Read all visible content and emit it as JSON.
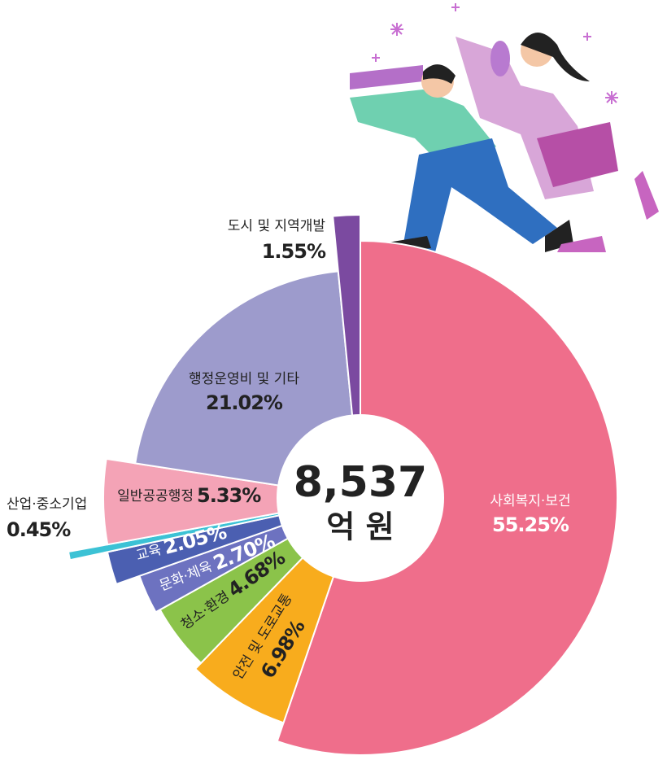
{
  "chart_data": {
    "type": "pie",
    "center_text": "8,537",
    "center_unit": "억 원",
    "categories": [
      "사회복지·보건",
      "안전 및 도로교통",
      "청소·환경",
      "문화·체육",
      "교육",
      "산업·중소기업",
      "일반공공행정",
      "행정운영비 및 기타",
      "도시 및 지역개발"
    ],
    "values": [
      55.25,
      6.98,
      4.68,
      2.7,
      2.05,
      0.45,
      5.33,
      21.02,
      1.55
    ],
    "value_labels": [
      "55.25%",
      "6.98%",
      "4.68%",
      "2.70%",
      "2.05%",
      "0.45%",
      "5.33%",
      "21.02%",
      "1.55%"
    ],
    "colors": [
      "#ef6e8b",
      "#f8ac1d",
      "#8bc34a",
      "#6d72c0",
      "#4b5fb1",
      "#3cc2d5",
      "#f4a3b6",
      "#9d9bcc",
      "#7b4aa0"
    ]
  }
}
